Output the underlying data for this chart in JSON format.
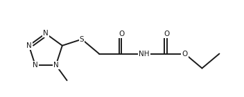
{
  "bg_color": "#ffffff",
  "line_color": "#1a1a1a",
  "line_width": 1.4,
  "font_size": 7.5,
  "fig_width": 3.52,
  "fig_height": 1.4,
  "dpi": 100,
  "xlim": [
    -0.5,
    9.2
  ],
  "ylim": [
    -1.8,
    2.0
  ]
}
